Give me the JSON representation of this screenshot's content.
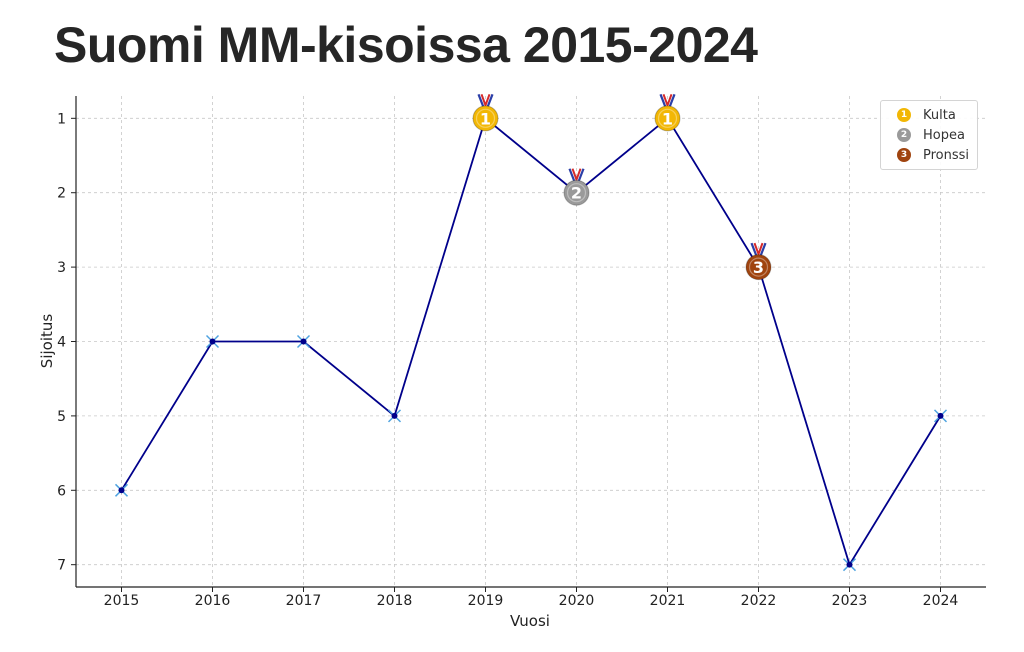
{
  "title": "Suomi MM-kisoissa 2015-2024",
  "chart_data": {
    "type": "line",
    "title": "Suomi MM-kisoissa 2015-2024",
    "xlabel": "Vuosi",
    "ylabel": "Sijoitus",
    "x": [
      2015,
      2016,
      2017,
      2018,
      2019,
      2020,
      2021,
      2022,
      2023,
      2024
    ],
    "y": [
      6,
      4,
      4,
      5,
      1,
      2,
      1,
      3,
      7,
      5
    ],
    "xlim": [
      2014.5,
      2024.5
    ],
    "ylim": [
      7.3,
      0.7
    ],
    "y_inverted": true,
    "yticks": [
      1,
      2,
      3,
      4,
      5,
      6,
      7
    ],
    "grid": true,
    "line_color": "#00008b",
    "marker_color": "#4fa3e0",
    "medals": [
      {
        "place": 1,
        "label": "Kulta",
        "color": "#f2b705"
      },
      {
        "place": 2,
        "label": "Hopea",
        "color": "#9a9a9a"
      },
      {
        "place": 3,
        "label": "Pronssi",
        "color": "#a0440f"
      }
    ],
    "legend_position": "top-right"
  }
}
